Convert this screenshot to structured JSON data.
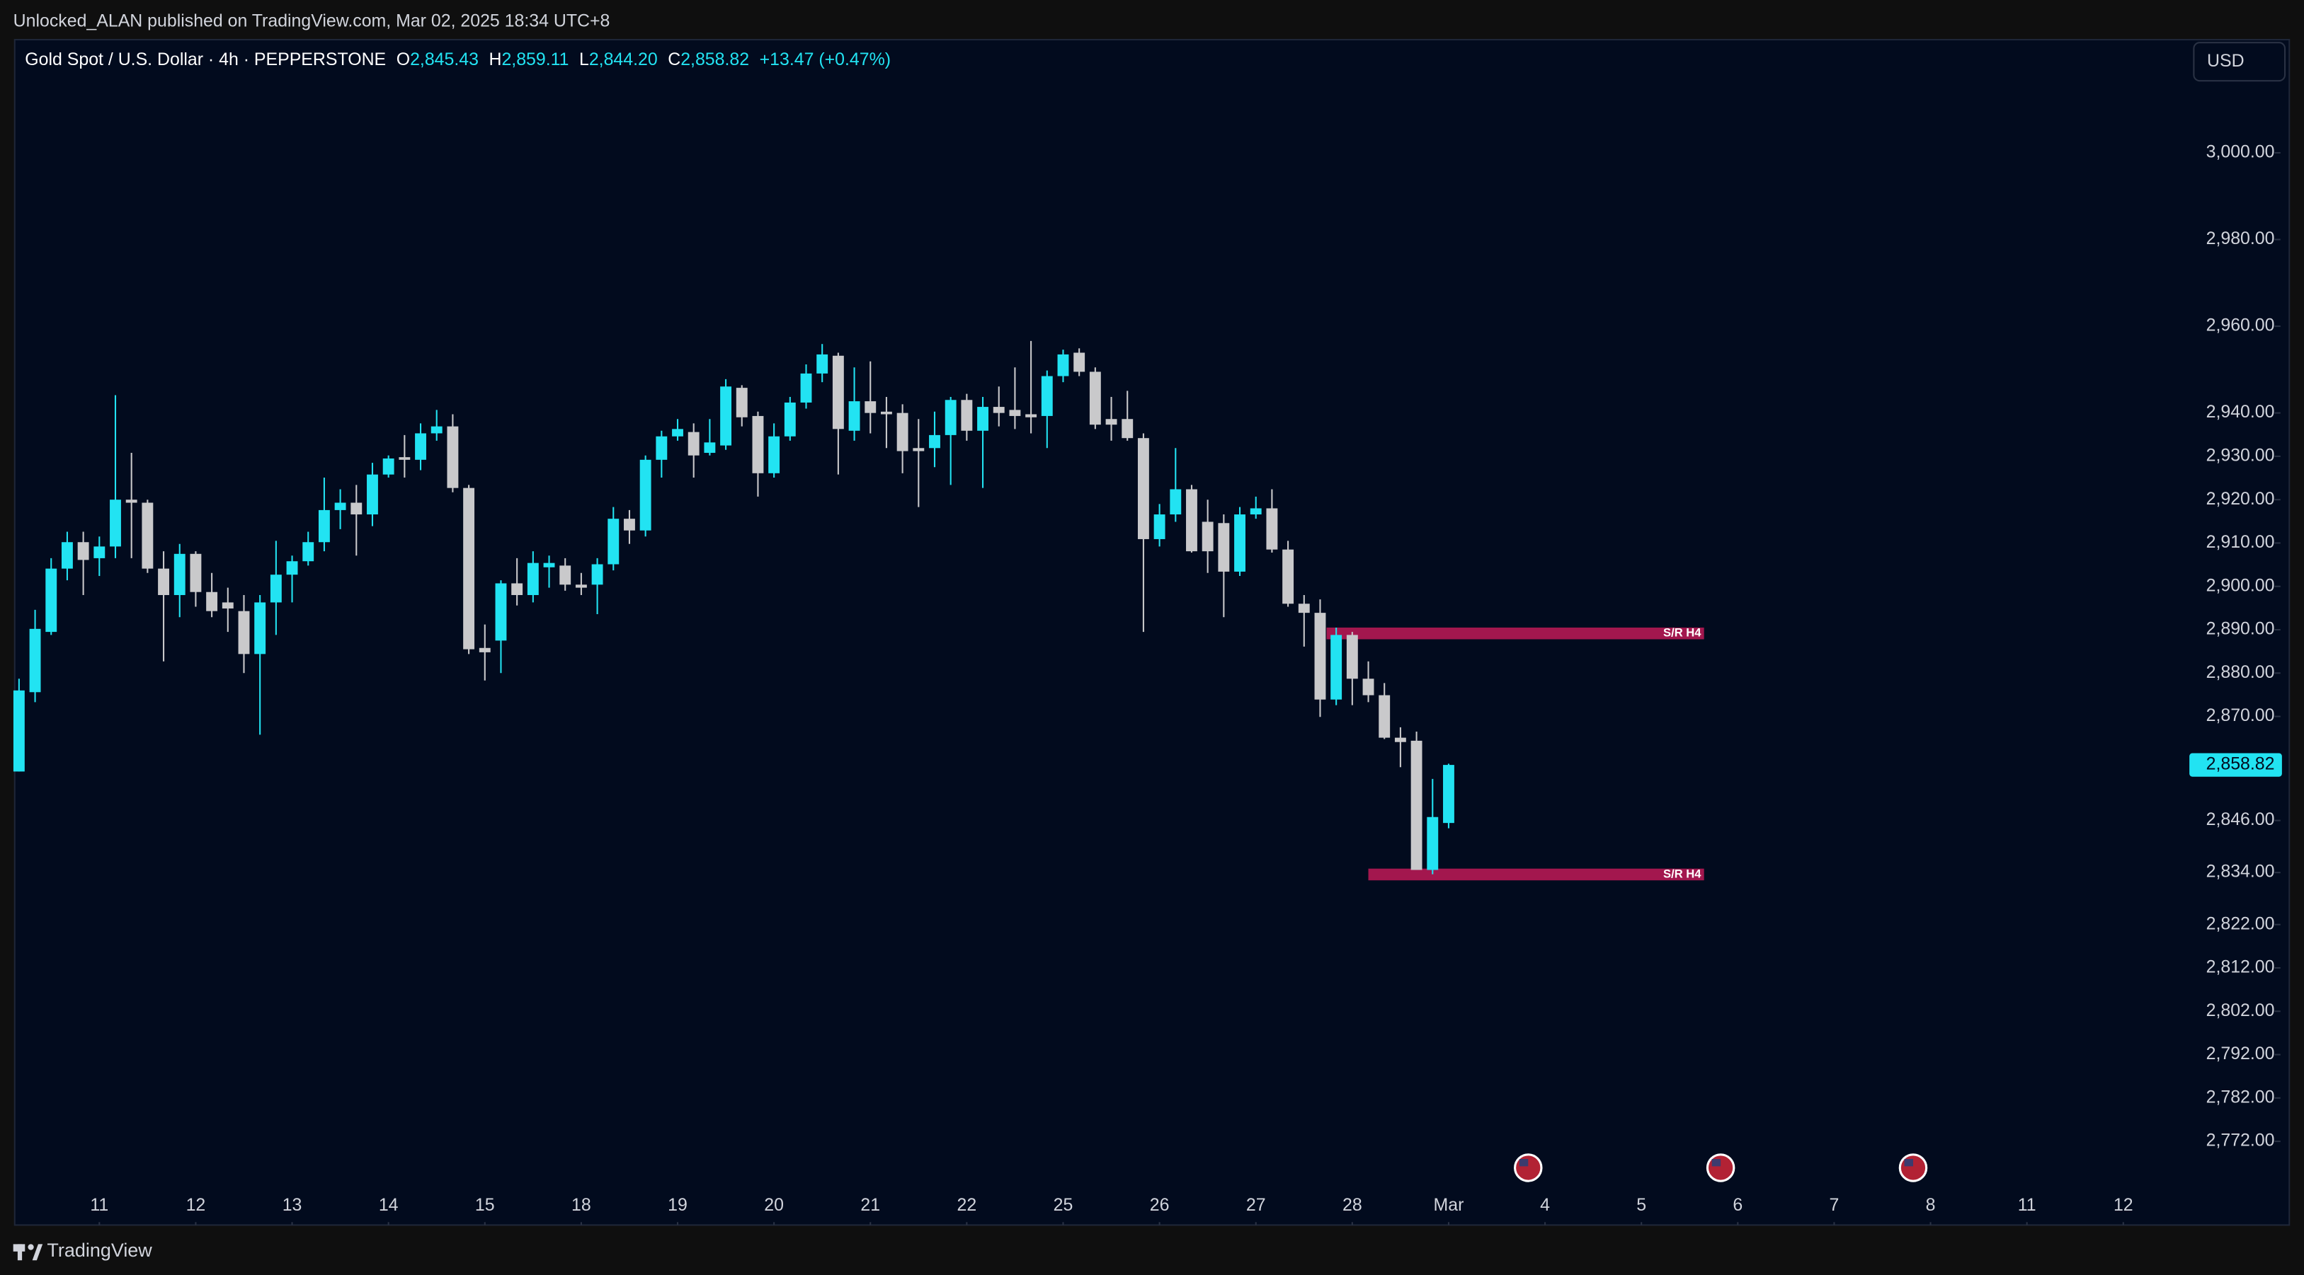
{
  "chart_data": {
    "type": "candlestick",
    "attribution": "Unlocked_ALAN published on TradingView.com, Mar 02, 2025 18:34 UTC+8",
    "title": "Gold Spot / U.S. Dollar · 4h · PEPPERSTONE",
    "legend_items": [
      {
        "key": "O",
        "value": "2,845.43"
      },
      {
        "key": "H",
        "value": "2,859.11"
      },
      {
        "key": "L",
        "value": "2,844.20"
      },
      {
        "key": "C",
        "value": "2,858.82"
      }
    ],
    "change": "+13.47 (+0.47%)",
    "currency": "USD",
    "brand": "TradingView",
    "up_color": "#22e3f2",
    "down_color": "#c9c9cb",
    "xlim": [
      -0.27,
      134.2
    ],
    "ylim": [
      2761.5,
      3026.1
    ],
    "xticks": [
      {
        "value": 5,
        "label": "11"
      },
      {
        "value": 11,
        "label": "12"
      },
      {
        "value": 17,
        "label": "13"
      },
      {
        "value": 23,
        "label": "14"
      },
      {
        "value": 29,
        "label": "15"
      },
      {
        "value": 35,
        "label": "18"
      },
      {
        "value": 41,
        "label": "19"
      },
      {
        "value": 47,
        "label": "20"
      },
      {
        "value": 53,
        "label": "21"
      },
      {
        "value": 59,
        "label": "22"
      },
      {
        "value": 65,
        "label": "25"
      },
      {
        "value": 71,
        "label": "26"
      },
      {
        "value": 77,
        "label": "27"
      },
      {
        "value": 83,
        "label": "28"
      },
      {
        "value": 89,
        "label": "Mar"
      },
      {
        "value": 95,
        "label": "4"
      },
      {
        "value": 101,
        "label": "5"
      },
      {
        "value": 107,
        "label": "6"
      },
      {
        "value": 113,
        "label": "7"
      },
      {
        "value": 119,
        "label": "8"
      },
      {
        "value": 125,
        "label": "11"
      },
      {
        "value": 131,
        "label": "12"
      }
    ],
    "yticks": [
      {
        "value": 3000,
        "label": "3,000.00"
      },
      {
        "value": 2980,
        "label": "2,980.00"
      },
      {
        "value": 2960,
        "label": "2,960.00"
      },
      {
        "value": 2940,
        "label": "2,940.00"
      },
      {
        "value": 2930,
        "label": "2,930.00"
      },
      {
        "value": 2920,
        "label": "2,920.00"
      },
      {
        "value": 2910,
        "label": "2,910.00"
      },
      {
        "value": 2900,
        "label": "2,900.00"
      },
      {
        "value": 2890,
        "label": "2,890.00"
      },
      {
        "value": 2880,
        "label": "2,880.00"
      },
      {
        "value": 2870,
        "label": "2,870.00"
      },
      {
        "value": 2846,
        "label": "2,846.00"
      },
      {
        "value": 2834,
        "label": "2,834.00"
      },
      {
        "value": 2822,
        "label": "2,822.00"
      },
      {
        "value": 2812,
        "label": "2,812.00"
      },
      {
        "value": 2802,
        "label": "2,802.00"
      },
      {
        "value": 2792,
        "label": "2,792.00"
      },
      {
        "value": 2782,
        "label": "2,782.00"
      },
      {
        "value": 2772,
        "label": "2,772.00"
      }
    ],
    "last_price": {
      "value": 2858.82,
      "label": "2,858.82"
    },
    "zones": [
      {
        "label": "S/R H4",
        "from": 81.4,
        "to": 104.9,
        "top": 2890.5,
        "bottom": 2887.8,
        "color": "#a3174e"
      },
      {
        "label": "S/R H4",
        "from": 84.0,
        "to": 104.9,
        "top": 2834.9,
        "bottom": 2832.2,
        "color": "#a3174e"
      }
    ],
    "open": [
      2857.3,
      2875.6,
      2889.5,
      2904.1,
      2910.2,
      2906.5,
      2909.2,
      2920.0,
      2919.3,
      2904.1,
      2898.0,
      2907.5,
      2898.7,
      2896.3,
      2894.3,
      2884.4,
      2896.3,
      2902.7,
      2905.8,
      2910.2,
      2917.6,
      2919.3,
      2916.6,
      2925.8,
      2929.8,
      2929.2,
      2935.3,
      2936.9,
      2922.7,
      2885.8,
      2887.5,
      2900.7,
      2898.0,
      2904.4,
      2904.8,
      2900.4,
      2900.4,
      2905.1,
      2915.6,
      2912.9,
      2929.2,
      2934.6,
      2935.6,
      2930.8,
      2932.5,
      2945.8,
      2939.3,
      2926.1,
      2934.6,
      2942.4,
      2949.1,
      2953.2,
      2935.9,
      2942.7,
      2940.3,
      2940.0,
      2931.9,
      2931.9,
      2934.9,
      2943.0,
      2935.9,
      2941.4,
      2940.7,
      2939.7,
      2939.3,
      2948.5,
      2953.9,
      2949.5,
      2938.6,
      2938.6,
      2934.2,
      2910.9,
      2916.6,
      2922.4,
      2914.9,
      2914.6,
      2903.4,
      2916.6,
      2918.0,
      2908.5,
      2896.0,
      2893.9,
      2873.9,
      2888.8,
      2878.7,
      2874.9,
      2865.1,
      2864.4,
      2834.6,
      2845.43
    ],
    "high": [
      2878.7,
      2894.6,
      2906.5,
      2912.6,
      2912.6,
      2911.5,
      2944.1,
      2930.8,
      2920.0,
      2908.1,
      2909.8,
      2908.1,
      2903.1,
      2899.7,
      2898.0,
      2898.0,
      2910.5,
      2907.1,
      2912.6,
      2925.1,
      2922.4,
      2923.4,
      2928.5,
      2930.2,
      2934.9,
      2937.6,
      2940.7,
      2939.7,
      2923.4,
      2891.2,
      2901.4,
      2906.5,
      2908.1,
      2907.1,
      2906.5,
      2903.1,
      2906.5,
      2918.3,
      2917.6,
      2930.2,
      2935.9,
      2938.6,
      2937.6,
      2938.6,
      2947.8,
      2946.4,
      2940.3,
      2937.6,
      2943.7,
      2951.2,
      2955.9,
      2953.9,
      2950.5,
      2951.9,
      2943.7,
      2942.0,
      2938.6,
      2940.3,
      2943.7,
      2944.4,
      2943.7,
      2946.1,
      2950.5,
      2956.6,
      2949.8,
      2954.6,
      2954.9,
      2950.5,
      2943.7,
      2945.1,
      2935.3,
      2919.0,
      2931.9,
      2923.4,
      2920.0,
      2916.6,
      2918.3,
      2920.7,
      2922.4,
      2910.5,
      2898.0,
      2897.0,
      2890.5,
      2889.5,
      2882.7,
      2877.7,
      2867.5,
      2866.5,
      2855.6,
      2859.11
    ],
    "low": [
      2857.3,
      2873.3,
      2888.8,
      2901.4,
      2898.0,
      2902.4,
      2906.5,
      2906.5,
      2903.1,
      2882.7,
      2892.9,
      2895.3,
      2892.9,
      2889.5,
      2880.0,
      2865.8,
      2888.8,
      2896.3,
      2904.8,
      2908.1,
      2913.2,
      2907.1,
      2913.9,
      2925.1,
      2925.1,
      2926.8,
      2933.6,
      2921.7,
      2884.4,
      2878.3,
      2880.0,
      2895.6,
      2896.3,
      2899.7,
      2899.0,
      2898.0,
      2893.6,
      2903.7,
      2909.8,
      2911.5,
      2925.1,
      2933.6,
      2925.1,
      2930.2,
      2931.5,
      2936.9,
      2920.7,
      2925.1,
      2933.6,
      2941.0,
      2947.1,
      2925.8,
      2933.6,
      2935.3,
      2931.9,
      2926.1,
      2918.3,
      2927.5,
      2923.4,
      2933.6,
      2922.7,
      2936.9,
      2936.3,
      2935.3,
      2931.9,
      2947.1,
      2948.5,
      2936.3,
      2933.6,
      2933.6,
      2889.5,
      2909.2,
      2914.9,
      2907.8,
      2903.1,
      2892.9,
      2902.4,
      2915.6,
      2907.8,
      2895.3,
      2886.1,
      2869.9,
      2872.6,
      2872.6,
      2873.3,
      2864.8,
      2858.3,
      2834.6,
      2833.6,
      2844.2
    ],
    "close": [
      2876.0,
      2890.2,
      2904.1,
      2910.2,
      2906.1,
      2909.2,
      2920.0,
      2919.3,
      2904.1,
      2898.0,
      2907.5,
      2898.7,
      2894.3,
      2894.9,
      2884.4,
      2896.3,
      2902.7,
      2905.8,
      2910.2,
      2917.6,
      2919.3,
      2916.6,
      2925.8,
      2929.5,
      2929.2,
      2935.3,
      2936.9,
      2922.7,
      2885.5,
      2884.8,
      2900.7,
      2898.0,
      2905.4,
      2905.4,
      2900.4,
      2899.7,
      2905.1,
      2915.6,
      2912.9,
      2929.2,
      2934.6,
      2936.3,
      2930.2,
      2933.2,
      2946.1,
      2939.0,
      2926.1,
      2934.6,
      2942.4,
      2949.1,
      2953.5,
      2936.3,
      2942.7,
      2940.0,
      2939.7,
      2931.2,
      2931.2,
      2934.9,
      2943.0,
      2935.9,
      2941.4,
      2940.0,
      2939.3,
      2939.0,
      2948.5,
      2953.5,
      2949.5,
      2937.3,
      2937.3,
      2934.2,
      2910.9,
      2916.6,
      2922.4,
      2908.1,
      2908.1,
      2903.4,
      2916.6,
      2918.0,
      2908.5,
      2896.0,
      2893.9,
      2873.9,
      2888.8,
      2878.7,
      2874.9,
      2865.1,
      2864.1,
      2834.6,
      2846.8,
      2858.82
    ]
  }
}
